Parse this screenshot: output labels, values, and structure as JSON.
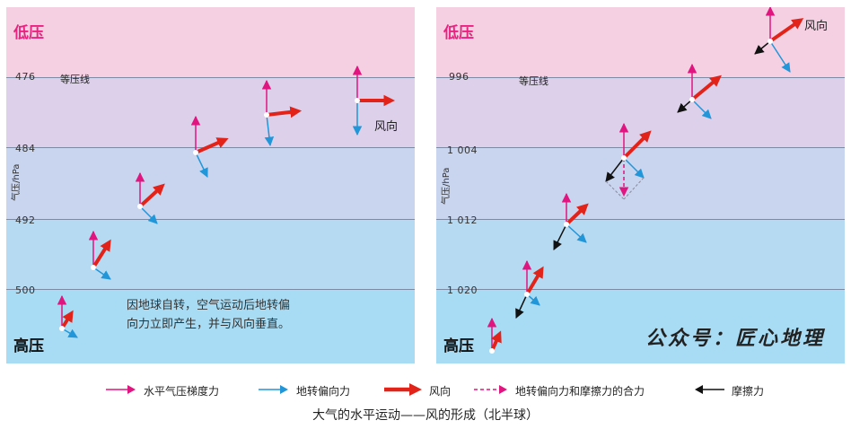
{
  "left_panel": {
    "low_pressure": "低压",
    "high_pressure": "高压",
    "isobar_label": "等压线",
    "axis_label": "气压/hPa",
    "pressure_ticks": [
      "476",
      "484",
      "492",
      "500"
    ],
    "wind_label": "风向",
    "note": "因地球自转，空气运动后地转偏向力立即产生，并与风向垂直。"
  },
  "right_panel": {
    "low_pressure": "低压",
    "high_pressure": "高压",
    "isobar_label": "等压线",
    "axis_label": "气压/hPa",
    "pressure_ticks": [
      "996",
      "1 004",
      "1 012",
      "1 020"
    ],
    "wind_label": "风向",
    "watermark": "公众号：匠心地理"
  },
  "legend": [
    {
      "label": "水平气压梯度力",
      "color": "#e0157f",
      "style": "thin"
    },
    {
      "label": "地转偏向力",
      "color": "#2196d8",
      "style": "thin"
    },
    {
      "label": "风向",
      "color": "#e2231a",
      "style": "thick"
    },
    {
      "label": "地转偏向力和摩擦力的合力",
      "color": "#e0157f",
      "style": "dashed"
    },
    {
      "label": "摩擦力",
      "color": "#111111",
      "style": "thin"
    }
  ],
  "caption": "大气的水平运动——风的形成（北半球）",
  "colors": {
    "pressure_gradient": "#e0157f",
    "coriolis": "#2196d8",
    "wind": "#e2231a",
    "friction": "#111111",
    "low_label": "#e8237f"
  }
}
